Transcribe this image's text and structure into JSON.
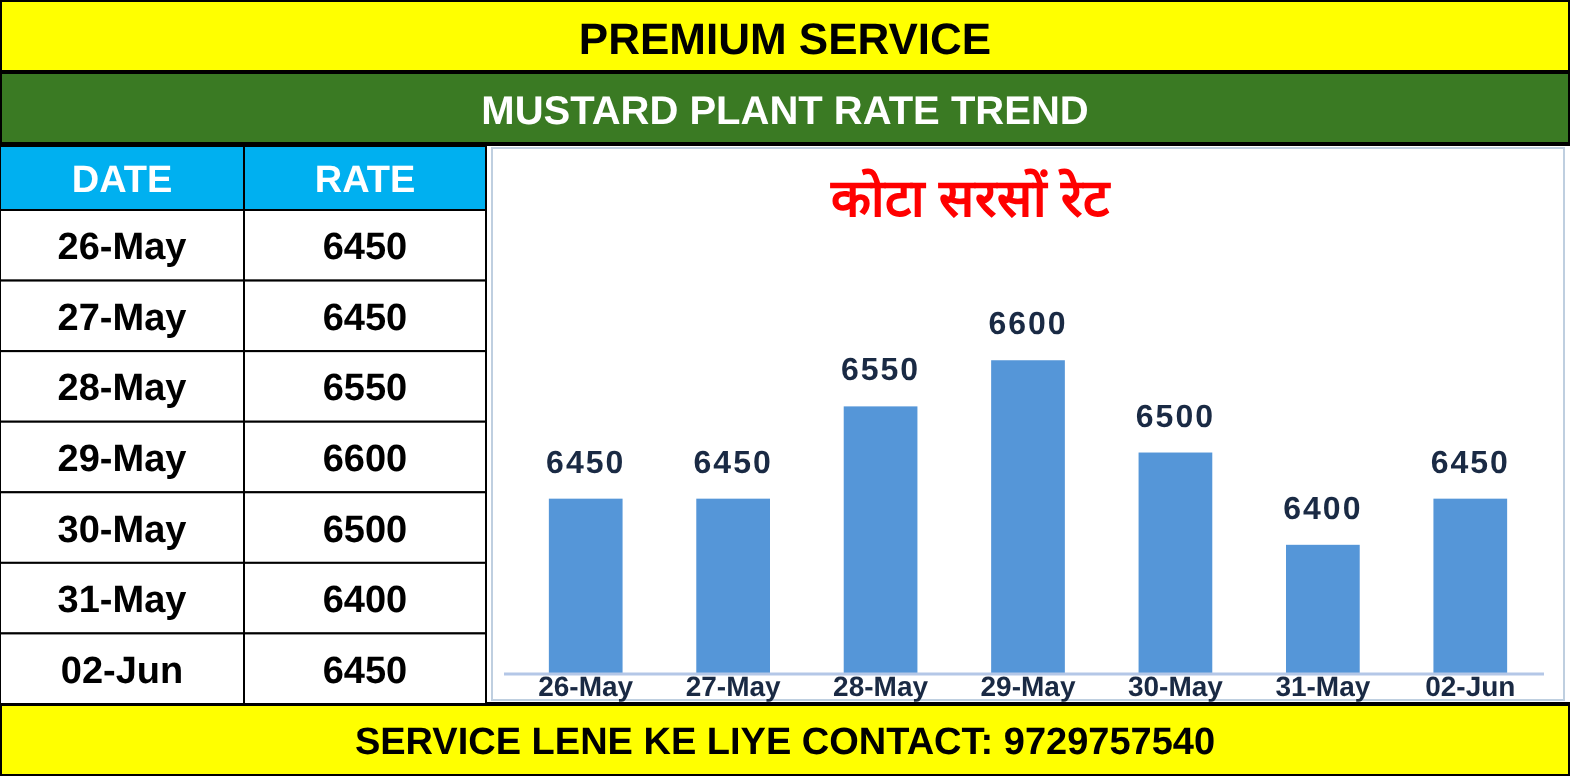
{
  "chart_data": [
    {
      "type": "bar",
      "title": "कोटा सरसों रेट",
      "subtitle": "MUSTARD PLANT RATE TREND",
      "annotations": [
        "PREMIUM SERVICE",
        "SERVICE LENE KE LIYE CONTACT: 9729757540"
      ],
      "categories": [
        "26-May",
        "27-May",
        "28-May",
        "29-May",
        "30-May",
        "31-May",
        "02-Jun"
      ],
      "values": [
        6450,
        6450,
        6550,
        6600,
        6500,
        6400,
        6450
      ],
      "color": "#5596d8",
      "ylim": [
        6260,
        6830
      ],
      "data_labels": true
    },
    {
      "type": "other",
      "annotations": [
        "DATE",
        "RATE"
      ],
      "categories": [
        "26-May",
        "27-May",
        "28-May",
        "29-May",
        "30-May",
        "31-May",
        "02-Jun"
      ],
      "values": [
        6450,
        6450,
        6550,
        6600,
        6500,
        6400,
        6450
      ],
      "data_labels": true
    }
  ]
}
